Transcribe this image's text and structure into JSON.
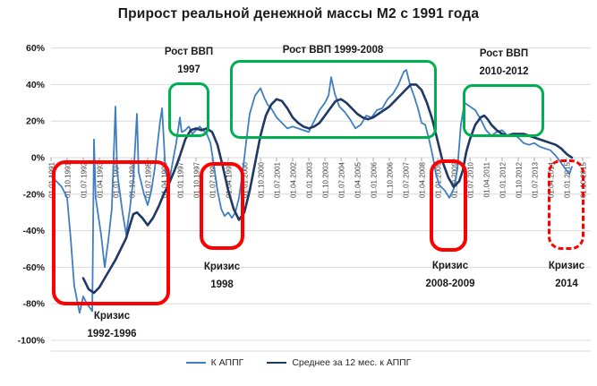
{
  "chart_data": {
    "type": "line",
    "title": "Прирост реальной денежной массы М2 с 1991 года",
    "xlabel": "",
    "ylabel": "",
    "grid": true,
    "legend_position": "bottom",
    "y_axis": {
      "min": -100,
      "max": 60,
      "step": 20,
      "unit": "%",
      "labels": [
        "60%",
        "40%",
        "20%",
        "0%",
        "-20%",
        "-40%",
        "-60%",
        "-80%",
        "-100%"
      ]
    },
    "x_ticks": [
      "01.01.1991",
      "01.10.1991",
      "01.07.1992",
      "01.04.1993",
      "01.01.1994",
      "01.10.1994",
      "01.07.1995",
      "01.04.1996",
      "01.01.1997",
      "01.10.1997",
      "01.07.1998",
      "01.04.1999",
      "01.01.2000",
      "01.10.2000",
      "01.07.2001",
      "01.04.2002",
      "01.01.2003",
      "01.10.2003",
      "01.07.2004",
      "01.04.2005",
      "01.01.2006",
      "01.10.2006",
      "01.07.2007",
      "01.04.2008",
      "01.01.2009",
      "01.10.2009",
      "01.07.2010",
      "01.04.2011",
      "01.01.2012",
      "01.10.2012",
      "01.07.2013",
      "01.04.2014",
      "01.01.2015",
      "01.10.2015"
    ],
    "x_range": [
      1991.0,
      2015.83
    ],
    "series": [
      {
        "name": "К АППГ",
        "color": "#3F7FC1",
        "width": 1.8,
        "points": [
          [
            1991.0,
            -10
          ],
          [
            1991.25,
            -13
          ],
          [
            1991.5,
            -16
          ],
          [
            1991.75,
            -22
          ],
          [
            1991.92,
            -45
          ],
          [
            1992.08,
            -70
          ],
          [
            1992.33,
            -85
          ],
          [
            1992.5,
            -76
          ],
          [
            1992.67,
            -80
          ],
          [
            1992.92,
            -84
          ],
          [
            1993.0,
            10
          ],
          [
            1993.08,
            -22
          ],
          [
            1993.33,
            -42
          ],
          [
            1993.5,
            -60
          ],
          [
            1993.67,
            -45
          ],
          [
            1993.83,
            -28
          ],
          [
            1994.0,
            28
          ],
          [
            1994.08,
            -8
          ],
          [
            1994.33,
            -30
          ],
          [
            1994.5,
            -42
          ],
          [
            1994.67,
            -28
          ],
          [
            1994.83,
            -12
          ],
          [
            1995.0,
            24
          ],
          [
            1995.08,
            -8
          ],
          [
            1995.33,
            -20
          ],
          [
            1995.5,
            -26
          ],
          [
            1995.67,
            -18
          ],
          [
            1995.83,
            -6
          ],
          [
            1996.08,
            20
          ],
          [
            1996.17,
            27
          ],
          [
            1996.33,
            -8
          ],
          [
            1996.5,
            -13
          ],
          [
            1996.67,
            -2
          ],
          [
            1996.83,
            8
          ],
          [
            1997.0,
            22
          ],
          [
            1997.08,
            14
          ],
          [
            1997.25,
            15
          ],
          [
            1997.42,
            17
          ],
          [
            1997.58,
            13
          ],
          [
            1997.75,
            15
          ],
          [
            1997.92,
            17
          ],
          [
            1998.08,
            15
          ],
          [
            1998.25,
            13
          ],
          [
            1998.42,
            8
          ],
          [
            1998.58,
            -4
          ],
          [
            1998.75,
            -18
          ],
          [
            1998.92,
            -28
          ],
          [
            1999.08,
            -32
          ],
          [
            1999.25,
            -30
          ],
          [
            1999.42,
            -33
          ],
          [
            1999.58,
            -30
          ],
          [
            1999.75,
            -22
          ],
          [
            1999.92,
            -8
          ],
          [
            2000.08,
            8
          ],
          [
            2000.25,
            24
          ],
          [
            2000.5,
            34
          ],
          [
            2000.75,
            38
          ],
          [
            2000.92,
            33
          ],
          [
            2001.08,
            29
          ],
          [
            2001.25,
            27
          ],
          [
            2001.5,
            22
          ],
          [
            2001.75,
            19
          ],
          [
            2002.0,
            16
          ],
          [
            2002.25,
            17
          ],
          [
            2002.5,
            16
          ],
          [
            2002.75,
            15
          ],
          [
            2003.0,
            14
          ],
          [
            2003.25,
            20
          ],
          [
            2003.5,
            26
          ],
          [
            2003.75,
            30
          ],
          [
            2003.92,
            34
          ],
          [
            2004.04,
            44
          ],
          [
            2004.21,
            35
          ],
          [
            2004.42,
            28
          ],
          [
            2004.67,
            25
          ],
          [
            2004.92,
            21
          ],
          [
            2005.17,
            16
          ],
          [
            2005.42,
            18
          ],
          [
            2005.67,
            23
          ],
          [
            2005.92,
            22
          ],
          [
            2006.17,
            26
          ],
          [
            2006.42,
            27
          ],
          [
            2006.67,
            32
          ],
          [
            2006.92,
            35
          ],
          [
            2007.17,
            40
          ],
          [
            2007.42,
            47
          ],
          [
            2007.54,
            48
          ],
          [
            2007.71,
            40
          ],
          [
            2007.92,
            33
          ],
          [
            2008.08,
            27
          ],
          [
            2008.25,
            19
          ],
          [
            2008.42,
            18
          ],
          [
            2008.58,
            11
          ],
          [
            2008.75,
            2
          ],
          [
            2008.92,
            -9
          ],
          [
            2009.08,
            -15
          ],
          [
            2009.33,
            -18
          ],
          [
            2009.54,
            -22
          ],
          [
            2009.75,
            -17
          ],
          [
            2009.92,
            -6
          ],
          [
            2010.08,
            18
          ],
          [
            2010.25,
            30
          ],
          [
            2010.5,
            28
          ],
          [
            2010.75,
            26
          ],
          [
            2011.0,
            21
          ],
          [
            2011.25,
            15
          ],
          [
            2011.5,
            12
          ],
          [
            2011.75,
            14
          ],
          [
            2012.0,
            15
          ],
          [
            2012.25,
            12
          ],
          [
            2012.5,
            13
          ],
          [
            2012.75,
            11
          ],
          [
            2013.0,
            8
          ],
          [
            2013.25,
            7
          ],
          [
            2013.5,
            8
          ],
          [
            2013.75,
            6
          ],
          [
            2014.0,
            5
          ],
          [
            2014.25,
            4
          ],
          [
            2014.5,
            1
          ],
          [
            2014.75,
            -3
          ],
          [
            2015.0,
            -7
          ],
          [
            2015.13,
            -9
          ],
          [
            2015.25,
            -5
          ]
        ]
      },
      {
        "name": "Среднее за 12 мес. к АППГ",
        "color": "#1F3864",
        "width": 2.6,
        "points": [
          [
            1992.5,
            -66
          ],
          [
            1992.75,
            -72
          ],
          [
            1993.0,
            -74
          ],
          [
            1993.25,
            -71
          ],
          [
            1993.5,
            -66
          ],
          [
            1993.75,
            -61
          ],
          [
            1994.0,
            -56
          ],
          [
            1994.25,
            -50
          ],
          [
            1994.5,
            -44
          ],
          [
            1994.67,
            -37
          ],
          [
            1994.83,
            -31
          ],
          [
            1995.0,
            -30
          ],
          [
            1995.25,
            -33
          ],
          [
            1995.5,
            -37
          ],
          [
            1995.75,
            -33
          ],
          [
            1996.0,
            -27
          ],
          [
            1996.25,
            -20
          ],
          [
            1996.5,
            -14
          ],
          [
            1996.75,
            -7
          ],
          [
            1997.0,
            1
          ],
          [
            1997.25,
            10
          ],
          [
            1997.5,
            15
          ],
          [
            1997.75,
            16
          ],
          [
            1998.0,
            15
          ],
          [
            1998.25,
            16
          ],
          [
            1998.5,
            14
          ],
          [
            1998.75,
            7
          ],
          [
            1999.0,
            -5
          ],
          [
            1999.25,
            -18
          ],
          [
            1999.5,
            -28
          ],
          [
            1999.75,
            -34
          ],
          [
            2000.0,
            -30
          ],
          [
            2000.25,
            -18
          ],
          [
            2000.5,
            -3
          ],
          [
            2000.75,
            12
          ],
          [
            2001.0,
            23
          ],
          [
            2001.25,
            29
          ],
          [
            2001.5,
            32
          ],
          [
            2001.75,
            31
          ],
          [
            2002.0,
            27
          ],
          [
            2002.25,
            22
          ],
          [
            2002.5,
            19
          ],
          [
            2002.75,
            17
          ],
          [
            2003.0,
            16
          ],
          [
            2003.25,
            17
          ],
          [
            2003.5,
            19
          ],
          [
            2003.75,
            23
          ],
          [
            2004.0,
            27
          ],
          [
            2004.25,
            31
          ],
          [
            2004.5,
            32
          ],
          [
            2004.75,
            30
          ],
          [
            2005.0,
            27
          ],
          [
            2005.25,
            24
          ],
          [
            2005.5,
            22
          ],
          [
            2005.75,
            21
          ],
          [
            2006.0,
            22
          ],
          [
            2006.25,
            24
          ],
          [
            2006.5,
            26
          ],
          [
            2006.75,
            28
          ],
          [
            2007.0,
            31
          ],
          [
            2007.25,
            34
          ],
          [
            2007.5,
            37
          ],
          [
            2007.75,
            40
          ],
          [
            2008.0,
            40
          ],
          [
            2008.25,
            37
          ],
          [
            2008.5,
            30
          ],
          [
            2008.75,
            21
          ],
          [
            2009.0,
            9
          ],
          [
            2009.25,
            -3
          ],
          [
            2009.5,
            -11
          ],
          [
            2009.75,
            -16
          ],
          [
            2010.0,
            -13
          ],
          [
            2010.17,
            -7
          ],
          [
            2010.33,
            3
          ],
          [
            2010.5,
            10
          ],
          [
            2010.75,
            18
          ],
          [
            2011.0,
            22
          ],
          [
            2011.17,
            23
          ],
          [
            2011.33,
            21
          ],
          [
            2011.5,
            18
          ],
          [
            2011.75,
            15
          ],
          [
            2012.0,
            13
          ],
          [
            2012.25,
            12
          ],
          [
            2012.5,
            13
          ],
          [
            2012.75,
            13
          ],
          [
            2013.0,
            13
          ],
          [
            2013.25,
            12
          ],
          [
            2013.5,
            11
          ],
          [
            2013.75,
            10
          ],
          [
            2014.0,
            9
          ],
          [
            2014.25,
            8
          ],
          [
            2014.5,
            7
          ],
          [
            2014.75,
            5
          ],
          [
            2015.0,
            2
          ],
          [
            2015.25,
            0
          ]
        ]
      }
    ],
    "annotations": {
      "growth": [
        {
          "line1": "Рост ВВП",
          "line2": "1997",
          "color": "#00B050"
        },
        {
          "line1": "Рост ВВП 1999-2008",
          "line2": "",
          "color": "#00B050"
        },
        {
          "line1": "Рост ВВП",
          "line2": "2010-2012",
          "color": "#00B050"
        }
      ],
      "crisis": [
        {
          "line1": "Кризис",
          "line2": "1992-1996",
          "color": "#FF0000",
          "style": "solid"
        },
        {
          "line1": "Кризис",
          "line2": "1998",
          "color": "#FF0000",
          "style": "solid"
        },
        {
          "line1": "Кризис",
          "line2": "2008-2009",
          "color": "#FF0000",
          "style": "solid"
        },
        {
          "line1": "Кризис",
          "line2": "2014",
          "color": "#FF0000",
          "style": "dashed"
        }
      ]
    }
  },
  "colors": {
    "grid": "#D9D9D9",
    "tick": "#A6A6A6",
    "axis_text": "#404040",
    "y_label_text": "#1A1A1A",
    "title": "#1A1A1A",
    "growth_box": "#00B050",
    "crisis_box": "#FF0000",
    "series_blue": "#3F7FC1",
    "series_navy": "#1F3864"
  }
}
